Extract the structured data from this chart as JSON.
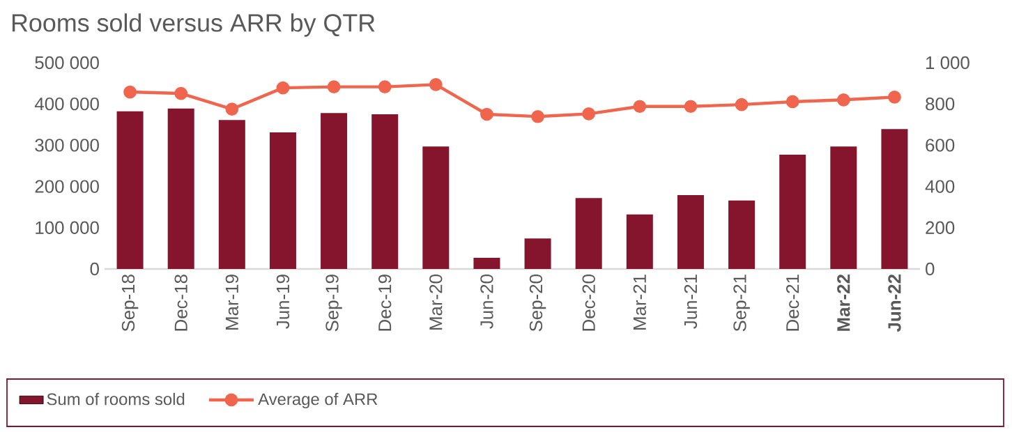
{
  "chart_data": {
    "type": "bar",
    "title": "Rooms sold versus ARR by QTR",
    "categories": [
      "Sep-18",
      "Dec-18",
      "Mar-19",
      "Jun-19",
      "Sep-19",
      "Dec-19",
      "Mar-20",
      "Jun-20",
      "Sep-20",
      "Dec-20",
      "Mar-21",
      "Jun-21",
      "Sep-21",
      "Dec-21",
      "**Mar-22**",
      "**Jun-22**"
    ],
    "series": [
      {
        "name": "Sum of rooms sold",
        "color": "#85142d",
        "values": [
          382000,
          389000,
          361000,
          331000,
          378000,
          375000,
          297000,
          27000,
          74000,
          172000,
          132000,
          179000,
          166000,
          277000,
          297000,
          339000
        ]
      },
      {
        "name": "Average of ARR",
        "type": "line",
        "axis": "y2",
        "color": "#f0654d",
        "values": [
          858,
          851,
          775,
          878,
          883,
          883,
          894,
          750,
          739,
          752,
          788,
          788,
          797,
          811,
          820,
          833
        ]
      }
    ],
    "ylim": [
      0,
      500000
    ],
    "yticks": [
      {
        "value": 0,
        "label": "0"
      },
      {
        "value": 100000,
        "label": "100 000"
      },
      {
        "value": 200000,
        "label": "200 000"
      },
      {
        "value": 300000,
        "label": "300 000"
      },
      {
        "value": 400000,
        "label": "400 000"
      },
      {
        "value": 500000,
        "label": "500 000"
      }
    ],
    "y2lim": [
      0,
      1000
    ],
    "y2ticks": [
      0,
      200,
      400,
      600,
      800,
      {
        "value": 1000,
        "label": "1 000"
      }
    ],
    "legend": "bottom",
    "marker": "circle",
    "line_style": "solid"
  }
}
